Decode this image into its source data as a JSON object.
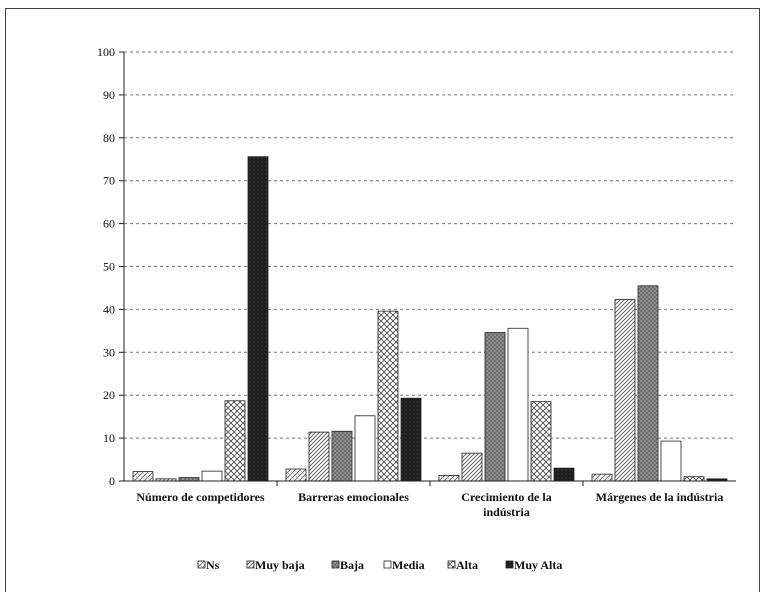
{
  "chart_data": {
    "type": "bar",
    "ylim": [
      0,
      100
    ],
    "yticks": [
      0,
      10,
      20,
      30,
      40,
      50,
      60,
      70,
      80,
      90,
      100
    ],
    "grid": true,
    "legend": "bottom",
    "categories": [
      [
        "Número de competidores"
      ],
      [
        "Barreras emocionales"
      ],
      [
        "Crecimiento de la",
        "indústria"
      ],
      [
        "Márgenes de la indústria"
      ]
    ],
    "series": [
      {
        "name": "Ns",
        "values": [
          2.2,
          2.8,
          1.3,
          1.6
        ],
        "pattern": "ns"
      },
      {
        "name": "Muy baja",
        "values": [
          0.5,
          11.4,
          6.5,
          42.3
        ],
        "pattern": "muybaja"
      },
      {
        "name": "Baja",
        "values": [
          0.8,
          11.6,
          34.6,
          45.5
        ],
        "pattern": "baja"
      },
      {
        "name": "Media",
        "values": [
          2.3,
          15.2,
          35.6,
          9.3
        ],
        "pattern": "media"
      },
      {
        "name": "Alta",
        "values": [
          18.7,
          39.6,
          18.5,
          1.0
        ],
        "pattern": "alta"
      },
      {
        "name": "Muy Alta",
        "values": [
          75.6,
          19.3,
          3.0,
          0.5
        ],
        "pattern": "muyalta"
      }
    ]
  }
}
